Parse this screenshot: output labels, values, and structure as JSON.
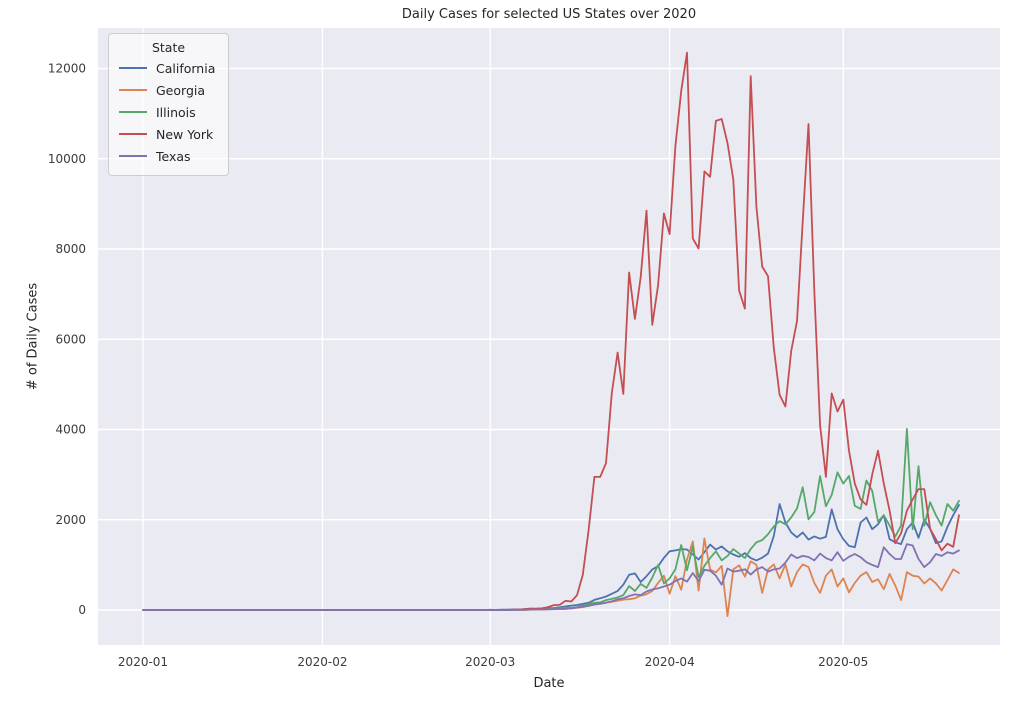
{
  "figure": {
    "title": "Daily Cases for selected US States over 2020",
    "xlabel": "Date",
    "ylabel": "# of Daily Cases",
    "legend_title": "State"
  },
  "chart_data": {
    "type": "line",
    "title": "Daily Cases for selected US States over 2020",
    "xlabel": "Date",
    "ylabel": "# of Daily Cases",
    "legend_title": "State",
    "legend_position": "upper left",
    "grid": true,
    "background_color": "#eaeaf2",
    "gridline_color": "#ffffff",
    "date_start": "2020-01-01",
    "date_end": "2020-05-21",
    "days_total": 142,
    "leading_zero_days": 60,
    "x_ticks": [
      {
        "day": 0,
        "label": "2020-01"
      },
      {
        "day": 31,
        "label": "2020-02"
      },
      {
        "day": 60,
        "label": "2020-03"
      },
      {
        "day": 91,
        "label": "2020-04"
      },
      {
        "day": 121,
        "label": "2020-05"
      }
    ],
    "y_ticks": [
      0,
      2000,
      4000,
      6000,
      8000,
      10000,
      12000
    ],
    "ylim_approx": [
      -780,
      12900
    ],
    "series": [
      {
        "name": "California",
        "color": "#4c72b0",
        "values_from_2020_03_01": [
          5,
          3,
          6,
          8,
          10,
          14,
          12,
          20,
          26,
          30,
          35,
          45,
          60,
          80,
          95,
          110,
          135,
          160,
          224,
          260,
          300,
          360,
          420,
          560,
          780,
          810,
          620,
          750,
          900,
          970,
          1155,
          1300,
          1320,
          1350,
          1340,
          1230,
          1120,
          1280,
          1450,
          1340,
          1410,
          1300,
          1230,
          1180,
          1260,
          1150,
          1100,
          1160,
          1250,
          1640,
          2350,
          1940,
          1720,
          1610,
          1720,
          1560,
          1630,
          1580,
          1620,
          2230,
          1790,
          1570,
          1420,
          1390,
          1940,
          2050,
          1790,
          1900,
          2100,
          1570,
          1500,
          1460,
          1790,
          1940,
          1600,
          2000,
          1800,
          1480,
          1520,
          1840,
          2100,
          2330
        ]
      },
      {
        "name": "Georgia",
        "color": "#dd8452",
        "values_from_2020_03_01": [
          0,
          0,
          2,
          0,
          3,
          5,
          7,
          10,
          9,
          13,
          15,
          22,
          25,
          35,
          30,
          50,
          65,
          90,
          120,
          135,
          160,
          185,
          205,
          230,
          240,
          260,
          320,
          350,
          420,
          600,
          760,
          360,
          750,
          450,
          1120,
          1520,
          430,
          1585,
          900,
          830,
          980,
          -135,
          900,
          990,
          740,
          1080,
          1000,
          380,
          900,
          1010,
          700,
          1010,
          520,
          840,
          1010,
          950,
          600,
          380,
          760,
          900,
          520,
          700,
          390,
          600,
          760,
          840,
          620,
          680,
          460,
          800,
          540,
          220,
          840,
          760,
          740,
          590,
          700,
          590,
          430,
          660,
          900,
          820
        ]
      },
      {
        "name": "Illinois",
        "color": "#55a868",
        "values_from_2020_03_01": [
          1,
          1,
          2,
          1,
          2,
          4,
          4,
          8,
          14,
          20,
          25,
          30,
          43,
          60,
          41,
          64,
          100,
          130,
          160,
          168,
          220,
          247,
          280,
          330,
          530,
          420,
          580,
          490,
          720,
          1000,
          590,
          700,
          900,
          1440,
          880,
          1400,
          730,
          980,
          1150,
          1300,
          1100,
          1200,
          1350,
          1250,
          1150,
          1350,
          1500,
          1550,
          1680,
          1850,
          1970,
          1900,
          2050,
          2250,
          2720,
          2010,
          2170,
          2970,
          2300,
          2550,
          3050,
          2800,
          2970,
          2310,
          2240,
          2870,
          2640,
          1960,
          2100,
          1870,
          1630,
          1870,
          4014,
          1790,
          3190,
          1870,
          2390,
          2100,
          1870,
          2350,
          2200,
          2420
        ]
      },
      {
        "name": "New York",
        "color": "#c44e52",
        "values_from_2020_03_01": [
          1,
          0,
          1,
          3,
          6,
          12,
          22,
          33,
          31,
          37,
          65,
          109,
          112,
          204,
          189,
          329,
          782,
          1770,
          2950,
          2950,
          3254,
          4805,
          5707,
          4790,
          7480,
          6450,
          7380,
          8850,
          6320,
          7200,
          8790,
          8330,
          10280,
          11500,
          12350,
          8230,
          8010,
          9720,
          9600,
          10840,
          10880,
          10350,
          9540,
          7080,
          6680,
          11830,
          8940,
          7610,
          7400,
          5810,
          4770,
          4510,
          5740,
          6400,
          8600,
          10770,
          7080,
          4090,
          2950,
          4800,
          4400,
          4660,
          3530,
          2800,
          2450,
          2330,
          3000,
          3530,
          2800,
          2200,
          1480,
          1700,
          2200,
          2450,
          2680,
          2680,
          1800,
          1570,
          1320,
          1470,
          1400,
          2100
        ]
      },
      {
        "name": "Texas",
        "color": "#8172b3",
        "values_from_2020_03_01": [
          0,
          0,
          0,
          0,
          2,
          3,
          5,
          8,
          11,
          10,
          15,
          18,
          27,
          23,
          40,
          55,
          75,
          95,
          125,
          140,
          165,
          190,
          235,
          260,
          310,
          345,
          330,
          410,
          455,
          480,
          520,
          560,
          640,
          700,
          630,
          820,
          640,
          890,
          870,
          760,
          560,
          920,
          850,
          870,
          905,
          785,
          900,
          950,
          850,
          900,
          920,
          1050,
          1230,
          1150,
          1200,
          1175,
          1100,
          1250,
          1150,
          1100,
          1280,
          1090,
          1180,
          1240,
          1170,
          1060,
          1000,
          950,
          1390,
          1240,
          1130,
          1130,
          1460,
          1430,
          1130,
          950,
          1060,
          1240,
          1200,
          1280,
          1250,
          1320
        ]
      }
    ]
  }
}
